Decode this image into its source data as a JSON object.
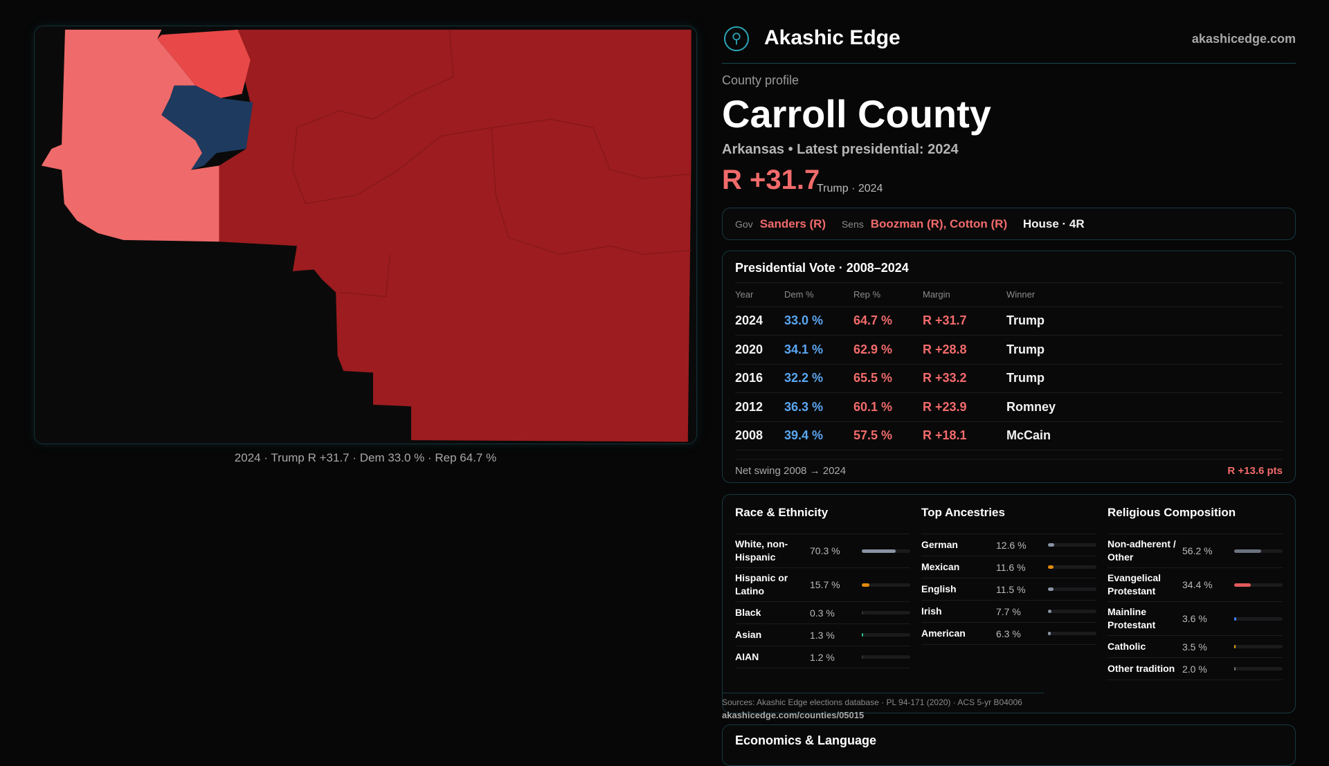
{
  "brand": {
    "name": "Akashic Edge",
    "site": "akashicedge.com"
  },
  "header": {
    "kicker": "County profile",
    "title": "Carroll County",
    "subtitle": "Arkansas • Latest presidential: 2024",
    "margin": "R +31.7",
    "margin_sub": "Trump · 2024"
  },
  "officials": {
    "gov_label": "Gov",
    "gov": "Sanders (R)",
    "sens_label": "Sens",
    "sens": "Boozman (R), Cotton (R)",
    "house": "House · 4R"
  },
  "map": {
    "caption": "2024 · Trump R +31.7 · Dem 33.0 % · Rep 64.7 %",
    "colors": {
      "strong_r": "#9c1c1f",
      "lean_r": "#ef6a6a",
      "mid_r": "#e84848",
      "dem": "#1e3a5f"
    }
  },
  "vote": {
    "title": "Presidential Vote · 2008–2024",
    "headers": [
      "Year",
      "Dem %",
      "Rep %",
      "Margin",
      "Winner"
    ],
    "rows": [
      {
        "year": "2024",
        "dem": "33.0 %",
        "rep": "64.7 %",
        "margin": "R +31.7",
        "winner": "Trump"
      },
      {
        "year": "2020",
        "dem": "34.1 %",
        "rep": "62.9 %",
        "margin": "R +28.8",
        "winner": "Trump"
      },
      {
        "year": "2016",
        "dem": "32.2 %",
        "rep": "65.5 %",
        "margin": "R +33.2",
        "winner": "Trump"
      },
      {
        "year": "2012",
        "dem": "36.3 %",
        "rep": "60.1 %",
        "margin": "R +23.9",
        "winner": "Romney"
      },
      {
        "year": "2008",
        "dem": "39.4 %",
        "rep": "57.5 %",
        "margin": "R +18.1",
        "winner": "McCain"
      }
    ],
    "swing_label": "Net swing 2008 → 2024",
    "swing_value": "R +13.6 pts"
  },
  "race": {
    "title": "Race & Ethnicity",
    "items": [
      {
        "name": "White, non-Hispanic",
        "pct": "70.3 %",
        "value": 70.3,
        "color": "#8a93a3"
      },
      {
        "name": "Hispanic or Latino",
        "pct": "15.7 %",
        "value": 15.7,
        "color": "#e08a0b"
      },
      {
        "name": "Black",
        "pct": "0.3 %",
        "value": 0.3,
        "color": "#333"
      },
      {
        "name": "Asian",
        "pct": "1.3 %",
        "value": 1.3,
        "color": "#2ec28a"
      },
      {
        "name": "AIAN",
        "pct": "1.2 %",
        "value": 1.2,
        "color": "#333"
      }
    ]
  },
  "ancestry": {
    "title": "Top Ancestries",
    "items": [
      {
        "name": "German",
        "pct": "12.6 %",
        "value": 12.6,
        "color": "#8a93a3"
      },
      {
        "name": "Mexican",
        "pct": "11.6 %",
        "value": 11.6,
        "color": "#e08a0b"
      },
      {
        "name": "English",
        "pct": "11.5 %",
        "value": 11.5,
        "color": "#8a93a3"
      },
      {
        "name": "Irish",
        "pct": "7.7 %",
        "value": 7.7,
        "color": "#8a93a3"
      },
      {
        "name": "American",
        "pct": "6.3 %",
        "value": 6.3,
        "color": "#8a93a3"
      }
    ]
  },
  "religion": {
    "title": "Religious Composition",
    "items": [
      {
        "name": "Non-adherent / Other",
        "pct": "56.2 %",
        "value": 56.2,
        "color": "#6b7280"
      },
      {
        "name": "Evangelical Protestant",
        "pct": "34.4 %",
        "value": 34.4,
        "color": "#e05a5a"
      },
      {
        "name": "Mainline Protestant",
        "pct": "3.6 %",
        "value": 3.6,
        "color": "#3b82f6"
      },
      {
        "name": "Catholic",
        "pct": "3.5 %",
        "value": 3.5,
        "color": "#e0a10b"
      },
      {
        "name": "Other tradition",
        "pct": "2.0 %",
        "value": 2.0,
        "color": "#777"
      }
    ]
  },
  "sources": "Sources: Akashic Edge elections database · PL 94-171 (2020) · ACS 5-yr B04006",
  "url": "akashicedge.com/counties/05015",
  "econ": {
    "title": "Economics & Language"
  }
}
